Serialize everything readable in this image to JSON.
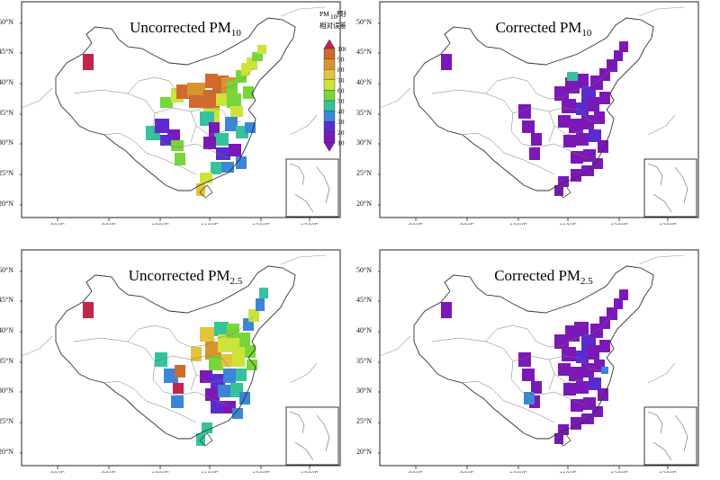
{
  "panels": [
    {
      "id": "p1",
      "title": "Uncorrected PM",
      "sub": "10"
    },
    {
      "id": "p2",
      "title": "Corrected PM",
      "sub": "10"
    },
    {
      "id": "p3",
      "title": "Uncorrected PM",
      "sub": "2.5"
    },
    {
      "id": "p4",
      "title": "Corrected PM",
      "sub": "2.5"
    }
  ],
  "axes": {
    "lon_ticks": [
      "80°E",
      "90°E",
      "100°E",
      "110°E",
      "120°E",
      "130°E"
    ],
    "lat_ticks": [
      "50°N",
      "45°N",
      "40°N",
      "35°N",
      "30°N",
      "25°N",
      "20°N"
    ]
  },
  "legend": {
    "title_pm": "PM",
    "title_sub": "10",
    "title_cn1": "预报",
    "title_cn2": "相对误差（%）",
    "levels": [
      "100",
      "90",
      "80",
      "70",
      "60",
      "50",
      "40",
      "30",
      "20",
      "10"
    ],
    "colors": [
      "#c0254a",
      "#d36a2a",
      "#d8942e",
      "#e2c53a",
      "#cde33a",
      "#77d63a",
      "#35c39b",
      "#3b86d8",
      "#5a2cd0",
      "#7b18b8"
    ]
  }
}
